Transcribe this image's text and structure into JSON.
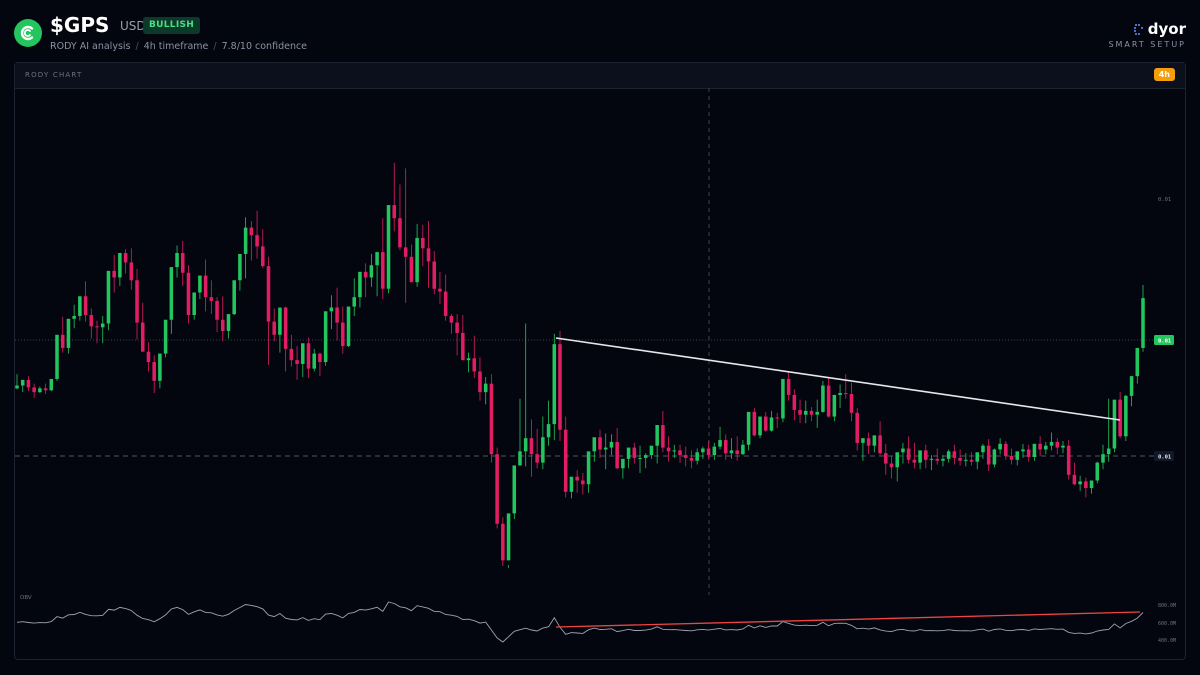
{
  "header": {
    "ticker": "$GPS",
    "quote": "USDT",
    "badge": "BULLISH",
    "breadcrumb": [
      "RODY AI analysis",
      "4h timeframe",
      "7.8/10 confidence"
    ]
  },
  "brand": {
    "name": "dyor",
    "tagline": "SMART SETUP"
  },
  "panel": {
    "title": "RODY CHART",
    "timeframe": "4h"
  },
  "colors": {
    "bull": "#22c55e",
    "bear": "#e11d63",
    "trendline": "#e5e7eb",
    "obv_trend": "#ef4444",
    "accent": "#f59e0b"
  },
  "chart_data": {
    "type": "candlestick",
    "price_labels": {
      "top": "0.01",
      "current": "0.01",
      "support": "0.01"
    },
    "indicator": {
      "name": "OBV",
      "tick_labels": [
        "800.0M",
        "600.0M",
        "400.0M"
      ]
    },
    "candles": [
      [
        0.01006,
        0.01021,
        0.01009,
        0.01005
      ],
      [
        0.01009,
        0.01011,
        0.01015,
        0.01002
      ],
      [
        0.01015,
        0.01019,
        0.01007,
        0.01003
      ],
      [
        0.01007,
        0.01011,
        0.01002,
        0.00996
      ],
      [
        0.01002,
        0.01008,
        0.01006,
        0.01001
      ],
      [
        0.01006,
        0.01011,
        0.01004,
        0.01
      ],
      [
        0.01004,
        0.01009,
        0.01016,
        0.01003
      ],
      [
        0.01016,
        0.01028,
        0.01063,
        0.01014
      ],
      [
        0.01063,
        0.01082,
        0.01049,
        0.01044
      ],
      [
        0.01049,
        0.01055,
        0.0108,
        0.01043
      ],
      [
        0.0108,
        0.01095,
        0.01083,
        0.0107
      ],
      [
        0.01083,
        0.01097,
        0.01104,
        0.01078
      ],
      [
        0.01104,
        0.0112,
        0.01084,
        0.01077
      ],
      [
        0.01084,
        0.01091,
        0.01072,
        0.01059
      ],
      [
        0.01072,
        0.01078,
        0.01071,
        0.01054
      ],
      [
        0.01071,
        0.01083,
        0.01075,
        0.01054
      ],
      [
        0.01075,
        0.01085,
        0.01131,
        0.01068
      ],
      [
        0.01131,
        0.01148,
        0.01124,
        0.01108
      ],
      [
        0.01124,
        0.0114,
        0.0115,
        0.01115
      ],
      [
        0.0115,
        0.01154,
        0.0114,
        0.01128
      ],
      [
        0.0114,
        0.01155,
        0.01121,
        0.01111
      ],
      [
        0.01121,
        0.01133,
        0.01076,
        0.01058
      ],
      [
        0.01076,
        0.01097,
        0.01045,
        0.01045
      ],
      [
        0.01045,
        0.01055,
        0.01034,
        0.01024
      ],
      [
        0.01034,
        0.01041,
        0.01014,
        0.01001
      ],
      [
        0.01014,
        0.01022,
        0.01043,
        0.01006
      ],
      [
        0.01043,
        0.01057,
        0.01079,
        0.01039
      ],
      [
        0.01079,
        0.01101,
        0.01135,
        0.01064
      ],
      [
        0.01135,
        0.01158,
        0.0115,
        0.01124
      ],
      [
        0.0115,
        0.01163,
        0.01129,
        0.01115
      ],
      [
        0.01129,
        0.01137,
        0.01084,
        0.01075
      ],
      [
        0.01084,
        0.01095,
        0.01108,
        0.01079
      ],
      [
        0.01108,
        0.01122,
        0.01126,
        0.01101
      ],
      [
        0.01126,
        0.01143,
        0.01103,
        0.01088
      ],
      [
        0.01103,
        0.01121,
        0.01099,
        0.01085
      ],
      [
        0.01099,
        0.01103,
        0.01079,
        0.01066
      ],
      [
        0.01079,
        0.01104,
        0.01067,
        0.01056
      ],
      [
        0.01067,
        0.0108,
        0.01085,
        0.01059
      ],
      [
        0.01085,
        0.01106,
        0.01121,
        0.01084
      ],
      [
        0.01121,
        0.01146,
        0.01149,
        0.0111
      ],
      [
        0.01149,
        0.01188,
        0.01177,
        0.01123
      ],
      [
        0.01177,
        0.01184,
        0.01169,
        0.01142
      ],
      [
        0.01169,
        0.01195,
        0.01157,
        0.01144
      ],
      [
        0.01157,
        0.01175,
        0.01136,
        0.01134
      ],
      [
        0.01136,
        0.01146,
        0.01077,
        0.01031
      ],
      [
        0.01077,
        0.01091,
        0.01063,
        0.01056
      ],
      [
        0.01063,
        0.01079,
        0.01092,
        0.01044
      ],
      [
        0.01092,
        0.01093,
        0.01048,
        0.01024
      ],
      [
        0.01048,
        0.01063,
        0.01036,
        0.01029
      ],
      [
        0.01036,
        0.01051,
        0.01032,
        0.01015
      ],
      [
        0.01032,
        0.01043,
        0.01054,
        0.01018
      ],
      [
        0.01054,
        0.0106,
        0.01027,
        0.01017
      ],
      [
        0.01027,
        0.01048,
        0.01043,
        0.01024
      ],
      [
        0.01043,
        0.01044,
        0.01034,
        0.01019
      ],
      [
        0.01034,
        0.0105,
        0.01088,
        0.0103
      ],
      [
        0.01088,
        0.01105,
        0.01092,
        0.01069
      ],
      [
        0.01092,
        0.01113,
        0.01076,
        0.01057
      ],
      [
        0.01076,
        0.01093,
        0.01051,
        0.01043
      ],
      [
        0.01051,
        0.01058,
        0.01093,
        0.0105
      ],
      [
        0.01093,
        0.01123,
        0.01103,
        0.01083
      ],
      [
        0.01103,
        0.01116,
        0.0113,
        0.01092
      ],
      [
        0.0113,
        0.01139,
        0.01124,
        0.01103
      ],
      [
        0.01124,
        0.01149,
        0.01137,
        0.01114
      ],
      [
        0.01137,
        0.01149,
        0.01151,
        0.01104
      ],
      [
        0.01151,
        0.01187,
        0.01112,
        0.01101
      ],
      [
        0.01112,
        0.01129,
        0.01201,
        0.01107
      ],
      [
        0.01201,
        0.01246,
        0.01187,
        0.01173
      ],
      [
        0.01187,
        0.01223,
        0.01156,
        0.01153
      ],
      [
        0.01156,
        0.0124,
        0.01146,
        0.01097
      ],
      [
        0.01146,
        0.01159,
        0.01119,
        0.0112
      ],
      [
        0.01119,
        0.01181,
        0.01166,
        0.01114
      ],
      [
        0.01166,
        0.0118,
        0.01155,
        0.01136
      ],
      [
        0.01155,
        0.01184,
        0.01141,
        0.01113
      ],
      [
        0.01141,
        0.01152,
        0.01112,
        0.01106
      ],
      [
        0.01112,
        0.0113,
        0.01109,
        0.01096
      ],
      [
        0.01109,
        0.01127,
        0.01083,
        0.01078
      ],
      [
        0.01083,
        0.01085,
        0.01076,
        0.01064
      ],
      [
        0.01076,
        0.01085,
        0.01065,
        0.01041
      ],
      [
        0.01065,
        0.01084,
        0.01036,
        0.01036
      ],
      [
        0.01036,
        0.01044,
        0.01038,
        0.01023
      ],
      [
        0.01038,
        0.01062,
        0.01024,
        0.01017
      ],
      [
        0.01024,
        0.01039,
        0.01002,
        0.00993
      ],
      [
        0.01002,
        0.01018,
        0.01011,
        0.00989
      ],
      [
        0.01011,
        0.01021,
        0.00936,
        0.00927
      ],
      [
        0.00936,
        0.00943,
        0.00862,
        0.00857
      ],
      [
        0.00862,
        0.00869,
        0.00823,
        0.00817
      ],
      [
        0.00823,
        0.00818,
        0.00873,
        0.00815
      ],
      [
        0.00873,
        0.00894,
        0.00924,
        0.00867
      ],
      [
        0.00924,
        0.00995,
        0.00939,
        0.00926
      ],
      [
        0.00939,
        0.01075,
        0.00953,
        0.00923
      ],
      [
        0.00953,
        0.00973,
        0.00936,
        0.00912
      ],
      [
        0.00936,
        0.00963,
        0.00927,
        0.00921
      ],
      [
        0.00927,
        0.00976,
        0.00954,
        0.0092
      ],
      [
        0.00954,
        0.00993,
        0.00968,
        0.00945
      ],
      [
        0.00968,
        0.01064,
        0.01053,
        0.00951
      ],
      [
        0.01053,
        0.01067,
        0.00962,
        0.0095
      ],
      [
        0.00962,
        0.00976,
        0.00896,
        0.0089
      ],
      [
        0.00896,
        0.0091,
        0.00912,
        0.00889
      ],
      [
        0.00912,
        0.00919,
        0.00908,
        0.00895
      ],
      [
        0.00908,
        0.00916,
        0.00904,
        0.00893
      ],
      [
        0.00904,
        0.00922,
        0.00939,
        0.00895
      ],
      [
        0.00939,
        0.00951,
        0.00954,
        0.00928
      ],
      [
        0.00954,
        0.00962,
        0.00941,
        0.00932
      ],
      [
        0.00941,
        0.00958,
        0.00943,
        0.0092
      ],
      [
        0.00943,
        0.00957,
        0.00949,
        0.00935
      ],
      [
        0.00949,
        0.00964,
        0.00921,
        0.0092
      ],
      [
        0.00921,
        0.00928,
        0.00931,
        0.0091
      ],
      [
        0.00931,
        0.00941,
        0.00943,
        0.00921
      ],
      [
        0.00943,
        0.00948,
        0.00932,
        0.00926
      ],
      [
        0.00932,
        0.00945,
        0.00932,
        0.00916
      ],
      [
        0.00932,
        0.00937,
        0.00935,
        0.00921
      ],
      [
        0.00935,
        0.00938,
        0.00945,
        0.00931
      ],
      [
        0.00945,
        0.00961,
        0.00967,
        0.00926
      ],
      [
        0.00967,
        0.00982,
        0.00943,
        0.00938
      ],
      [
        0.00943,
        0.00955,
        0.00939,
        0.00928
      ],
      [
        0.00939,
        0.00946,
        0.0094,
        0.00932
      ],
      [
        0.0094,
        0.00946,
        0.00935,
        0.00927
      ],
      [
        0.00935,
        0.00944,
        0.00932,
        0.00923
      ],
      [
        0.00932,
        0.0094,
        0.00929,
        0.00921
      ],
      [
        0.00929,
        0.00942,
        0.00938,
        0.00925
      ],
      [
        0.00938,
        0.00944,
        0.00942,
        0.00931
      ],
      [
        0.00942,
        0.0095,
        0.00935,
        0.00931
      ],
      [
        0.00935,
        0.00948,
        0.00944,
        0.0093
      ],
      [
        0.00944,
        0.00965,
        0.00951,
        0.00941
      ],
      [
        0.00951,
        0.00957,
        0.00937,
        0.0093
      ],
      [
        0.00937,
        0.00953,
        0.0094,
        0.00931
      ],
      [
        0.0094,
        0.00955,
        0.00936,
        0.00929
      ],
      [
        0.00936,
        0.00951,
        0.00946,
        0.00935
      ],
      [
        0.00946,
        0.00958,
        0.00981,
        0.0094
      ],
      [
        0.00981,
        0.00985,
        0.00956,
        0.00955
      ],
      [
        0.00956,
        0.00976,
        0.00976,
        0.00953
      ],
      [
        0.00976,
        0.00981,
        0.00961,
        0.0096
      ],
      [
        0.00961,
        0.00982,
        0.00975,
        0.0096
      ],
      [
        0.00975,
        0.0098,
        0.00974,
        0.00964
      ],
      [
        0.00974,
        0.01014,
        0.01016,
        0.0097
      ],
      [
        0.01016,
        0.01023,
        0.00999,
        0.00993
      ],
      [
        0.00999,
        0.01005,
        0.00983,
        0.00972
      ],
      [
        0.00983,
        0.00994,
        0.00978,
        0.00969
      ],
      [
        0.00978,
        0.00993,
        0.00982,
        0.00969
      ],
      [
        0.00982,
        0.00986,
        0.00978,
        0.00971
      ],
      [
        0.00978,
        0.00994,
        0.00981,
        0.00964
      ],
      [
        0.00981,
        0.01014,
        0.01009,
        0.0098
      ],
      [
        0.01009,
        0.01018,
        0.00976,
        0.00975
      ],
      [
        0.00976,
        0.00998,
        0.00999,
        0.00971
      ],
      [
        0.00999,
        0.0101,
        0.01001,
        0.00985
      ],
      [
        0.01001,
        0.01021,
        0.01,
        0.00995
      ],
      [
        0.01,
        0.01012,
        0.0098,
        0.00971
      ],
      [
        0.0098,
        0.00985,
        0.00948,
        0.0094
      ],
      [
        0.00948,
        0.00953,
        0.00953,
        0.00929
      ],
      [
        0.00953,
        0.00959,
        0.00945,
        0.00936
      ],
      [
        0.00945,
        0.00954,
        0.00956,
        0.00938
      ],
      [
        0.00956,
        0.00971,
        0.00937,
        0.00935
      ],
      [
        0.00937,
        0.00947,
        0.00926,
        0.00914
      ],
      [
        0.00926,
        0.00934,
        0.00922,
        0.0091
      ],
      [
        0.00922,
        0.00929,
        0.00938,
        0.00907
      ],
      [
        0.00938,
        0.00948,
        0.00942,
        0.00926
      ],
      [
        0.00942,
        0.00955,
        0.0093,
        0.00926
      ],
      [
        0.0093,
        0.00948,
        0.00927,
        0.00921
      ],
      [
        0.00927,
        0.00933,
        0.0094,
        0.0092
      ],
      [
        0.0094,
        0.00946,
        0.0093,
        0.00921
      ],
      [
        0.0093,
        0.00935,
        0.00931,
        0.00919
      ],
      [
        0.00931,
        0.00942,
        0.00929,
        0.00925
      ],
      [
        0.00929,
        0.00935,
        0.00931,
        0.00923
      ],
      [
        0.00931,
        0.00941,
        0.00939,
        0.00927
      ],
      [
        0.00939,
        0.00946,
        0.00932,
        0.00925
      ],
      [
        0.00932,
        0.00941,
        0.00929,
        0.00924
      ],
      [
        0.00929,
        0.00937,
        0.0093,
        0.00923
      ],
      [
        0.0093,
        0.00938,
        0.00928,
        0.00924
      ],
      [
        0.00928,
        0.00934,
        0.00938,
        0.0092
      ],
      [
        0.00938,
        0.00947,
        0.00945,
        0.00931
      ],
      [
        0.00945,
        0.00952,
        0.00925,
        0.00918
      ],
      [
        0.00925,
        0.00942,
        0.00941,
        0.00922
      ],
      [
        0.00941,
        0.00953,
        0.00947,
        0.00936
      ],
      [
        0.00947,
        0.0095,
        0.00934,
        0.0093
      ],
      [
        0.00934,
        0.00942,
        0.0093,
        0.00925
      ],
      [
        0.0093,
        0.00937,
        0.00939,
        0.00924
      ],
      [
        0.00939,
        0.00947,
        0.00941,
        0.00932
      ],
      [
        0.00941,
        0.00946,
        0.00933,
        0.00928
      ],
      [
        0.00933,
        0.00942,
        0.00947,
        0.00929
      ],
      [
        0.00947,
        0.00955,
        0.00941,
        0.00934
      ],
      [
        0.00941,
        0.00949,
        0.00945,
        0.00936
      ],
      [
        0.00945,
        0.00959,
        0.00949,
        0.0094
      ],
      [
        0.00949,
        0.00953,
        0.00943,
        0.00936
      ],
      [
        0.00943,
        0.0095,
        0.00945,
        0.00937
      ],
      [
        0.00945,
        0.00951,
        0.00914,
        0.00909
      ],
      [
        0.00914,
        0.00927,
        0.00904,
        0.00903
      ],
      [
        0.00904,
        0.00913,
        0.00907,
        0.00897
      ],
      [
        0.00907,
        0.00911,
        0.009,
        0.0089
      ],
      [
        0.009,
        0.00908,
        0.00908,
        0.00894
      ],
      [
        0.00908,
        0.00928,
        0.00927,
        0.00905
      ],
      [
        0.00927,
        0.00946,
        0.00936,
        0.0092
      ],
      [
        0.00936,
        0.00995,
        0.00942,
        0.00928
      ],
      [
        0.00942,
        0.00993,
        0.00994,
        0.00938
      ],
      [
        0.00994,
        0.01002,
        0.00955,
        0.00953
      ],
      [
        0.00955,
        0.00999,
        0.00998,
        0.0095
      ],
      [
        0.00998,
        0.01019,
        0.01019,
        0.00987
      ],
      [
        0.01019,
        0.01026,
        0.01049,
        0.01011
      ],
      [
        0.01049,
        0.01116,
        0.01102,
        0.01045
      ]
    ]
  }
}
